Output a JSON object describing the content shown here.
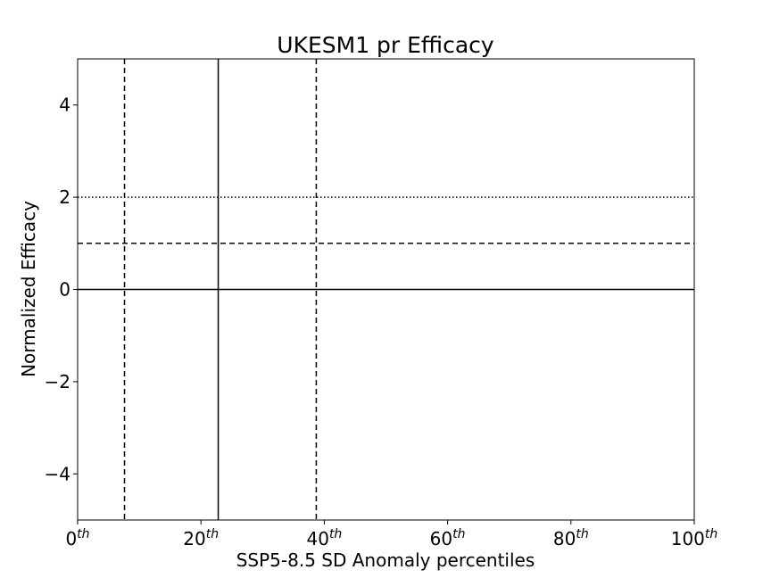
{
  "chart_data": {
    "type": "line",
    "title": "UKESM1 pr Efficacy",
    "xlabel": "SSP5-8.5 SD Anomaly percentiles",
    "ylabel": "Normalized Efficacy",
    "xlim": [
      0,
      100
    ],
    "ylim": [
      -5,
      5
    ],
    "grid": false,
    "x_ticks": [
      {
        "value": 0,
        "base": "0",
        "sup": "th"
      },
      {
        "value": 20,
        "base": "20",
        "sup": "th"
      },
      {
        "value": 40,
        "base": "40",
        "sup": "th"
      },
      {
        "value": 60,
        "base": "60",
        "sup": "th"
      },
      {
        "value": 80,
        "base": "80",
        "sup": "th"
      },
      {
        "value": 100,
        "base": "100",
        "sup": "th"
      }
    ],
    "y_ticks": [
      {
        "value": -4,
        "label": "−4"
      },
      {
        "value": -2,
        "label": "−2"
      },
      {
        "value": 0,
        "label": "0"
      },
      {
        "value": 2,
        "label": "2"
      },
      {
        "value": 4,
        "label": "4"
      }
    ],
    "reference_lines": {
      "horizontal": [
        {
          "y": 0,
          "style": "solid"
        },
        {
          "y": 1,
          "style": "dashed"
        },
        {
          "y": 2,
          "style": "dotted"
        }
      ],
      "vertical": [
        {
          "x": 7.6,
          "style": "dashed"
        },
        {
          "x": 22.8,
          "style": "solid"
        },
        {
          "x": 38.7,
          "style": "dashed"
        }
      ]
    },
    "series": []
  }
}
